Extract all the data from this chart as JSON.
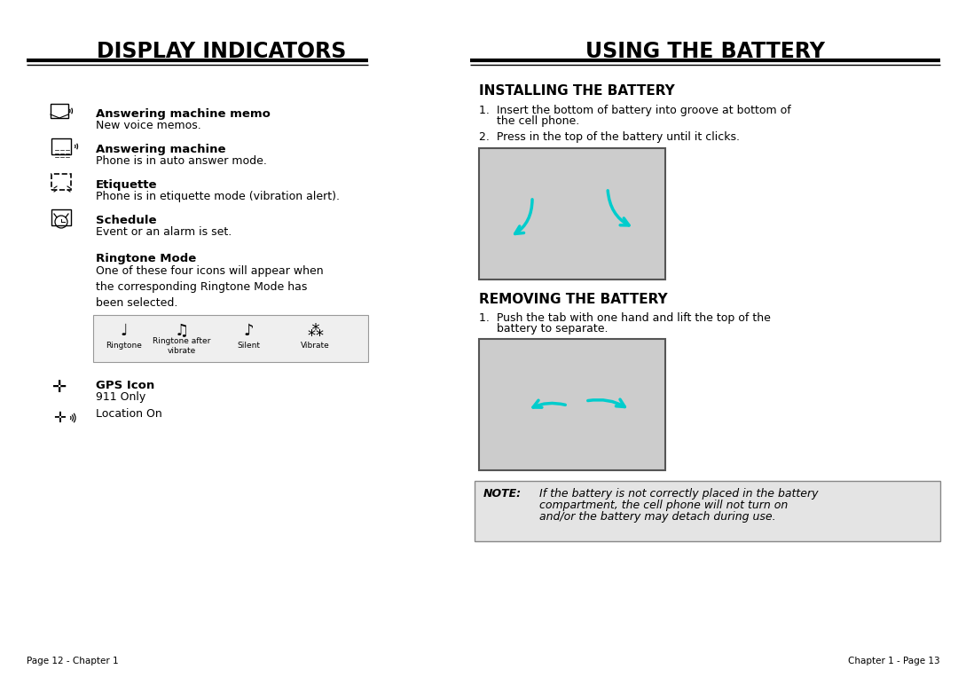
{
  "bg_color": "#ffffff",
  "left_title": "DISPLAY INDICATORS",
  "right_title": "USING THE BATTERY",
  "install_subtitle": "INSTALLING THE BATTERY",
  "remove_subtitle": "REMOVING THE BATTERY",
  "indicators": [
    {
      "label": "Answering machine memo",
      "desc": "New voice memos."
    },
    {
      "label": "Answering machine",
      "desc": "Phone is in auto answer mode."
    },
    {
      "label": "Etiquette",
      "desc": "Phone is in etiquette mode (vibration alert)."
    },
    {
      "label": "Schedule",
      "desc": "Event or an alarm is set."
    }
  ],
  "ringtone_label": "Ringtone Mode",
  "ringtone_desc": "One of these four icons will appear when\nthe corresponding Ringtone Mode has\nbeen selected.",
  "ringtone_icons": [
    "Ringtone",
    "Ringtone after\nvibrate",
    "Silent",
    "Vibrate"
  ],
  "gps_label": "GPS Icon",
  "gps_911": "911 Only",
  "gps_loc": "Location On",
  "install_step1a": "1.  Insert the bottom of battery into groove at bottom of",
  "install_step1b": "     the cell phone.",
  "install_step2": "2.  Press in the top of the battery until it clicks.",
  "remove_step1a": "1.  Push the tab with one hand and lift the top of the",
  "remove_step1b": "     battery to separate.",
  "note_label": "NOTE:",
  "note_line1": "If the battery is not correctly placed in the battery",
  "note_line2": "compartment, the cell phone will not turn on",
  "note_line3": "and/or the battery may detach during use.",
  "footer_left": "Page 12 - Chapter 1",
  "footer_right": "Chapter 1 - Page 13",
  "title_font_size": 17,
  "body_font_size": 9,
  "label_font_size": 9.5,
  "subtitle_font_size": 11
}
